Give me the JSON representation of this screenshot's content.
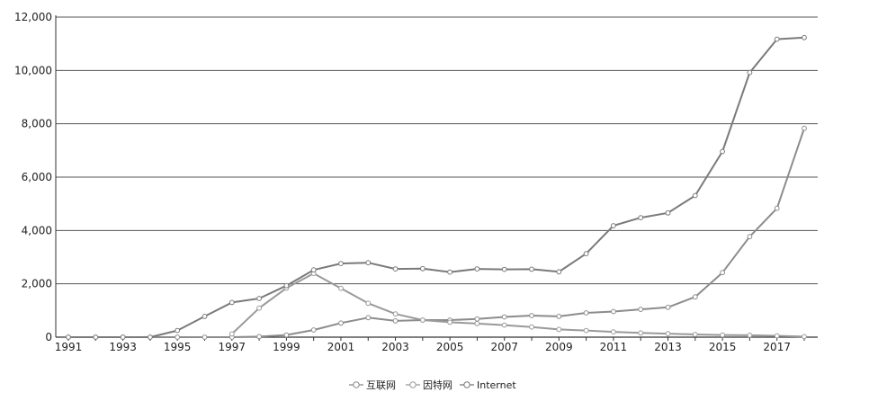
{
  "chart_data": {
    "type": "line",
    "title": "",
    "xlabel": "",
    "ylabel": "",
    "x": [
      1991,
      1992,
      1993,
      1994,
      1995,
      1996,
      1997,
      1998,
      1999,
      2000,
      2001,
      2002,
      2003,
      2004,
      2005,
      2006,
      2007,
      2008,
      2009,
      2010,
      2011,
      2012,
      2013,
      2014,
      2015,
      2016,
      2017,
      2018
    ],
    "x_tick_labels": [
      "1991",
      "1993",
      "1995",
      "1997",
      "1999",
      "2001",
      "2003",
      "2005",
      "2007",
      "2009",
      "2011",
      "2013",
      "2015",
      "2017"
    ],
    "y_tick_labels": [
      "0",
      "2,000",
      "4,000",
      "6,000",
      "8,000",
      "10,000",
      "12,000"
    ],
    "ylim": [
      0,
      12000
    ],
    "grid": "horizontal",
    "legend_position": "bottom",
    "series": [
      {
        "name": "互联网",
        "color": "#8c8c8c",
        "values": [
          0,
          0,
          0,
          0,
          0,
          0,
          0,
          20,
          80,
          270,
          530,
          730,
          610,
          640,
          640,
          680,
          760,
          810,
          780,
          910,
          960,
          1040,
          1120,
          1510,
          2420,
          3770,
          4830,
          7830
        ]
      },
      {
        "name": "因特网",
        "color": "#9a9a9a",
        "values": [
          null,
          null,
          null,
          null,
          null,
          null,
          120,
          1090,
          1840,
          2390,
          1830,
          1270,
          870,
          640,
          560,
          510,
          450,
          380,
          290,
          250,
          200,
          160,
          130,
          100,
          80,
          70,
          50,
          20
        ]
      },
      {
        "name": "Internet",
        "color": "#7a7a7a",
        "values": [
          0,
          0,
          0,
          0,
          250,
          780,
          1300,
          1450,
          1930,
          2520,
          2760,
          2790,
          2560,
          2570,
          2440,
          2560,
          2540,
          2550,
          2450,
          3130,
          4180,
          4480,
          4660,
          5310,
          6960,
          9920,
          11170,
          11230
        ]
      }
    ]
  }
}
